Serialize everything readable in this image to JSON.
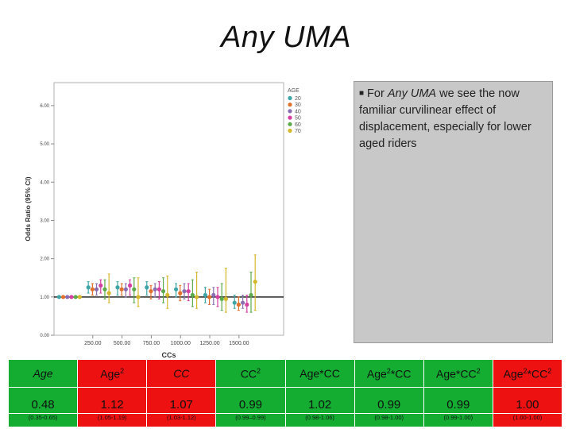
{
  "slide": {
    "title": "Any UMA",
    "note_prefix": "For ",
    "note_emphasis": "Any UMA",
    "note_rest": " we see the now familiar curvilinear effect of displacement, especially for lower aged riders"
  },
  "colors": {
    "red": "#ee1111",
    "green": "#14ad32",
    "note_bg": "#c8c8c8"
  },
  "chart_data": {
    "type": "scatter",
    "title": "",
    "xlabel": "CCs",
    "ylabel": "Odds Ratio (95% CI)",
    "xlim": [
      0,
      1800
    ],
    "ylim": [
      0,
      6.6
    ],
    "xticks": [
      250,
      500,
      750,
      1000,
      1250,
      1500
    ],
    "xtick_labels": [
      "250.00",
      "500.00",
      "750.00",
      "1000.00",
      "1250.00",
      "1500.00"
    ],
    "yticks": [
      0,
      1,
      2,
      3,
      4,
      5,
      6
    ],
    "ytick_labels": [
      "0.00",
      "1.00",
      "2.00",
      "3.00",
      "4.00",
      "5.00",
      "6.00"
    ],
    "reference_line": 1.0,
    "legend_title": "AGE",
    "legend_position": "top-right",
    "series": [
      {
        "name": "20",
        "color": "#3fa4a6",
        "points": [
          {
            "x": 50,
            "y": 1.0,
            "lo": 1.0,
            "hi": 1.0
          },
          {
            "x": 300,
            "y": 1.25,
            "lo": 1.1,
            "hi": 1.4
          },
          {
            "x": 550,
            "y": 1.25,
            "lo": 1.05,
            "hi": 1.4
          },
          {
            "x": 800,
            "y": 1.25,
            "lo": 1.05,
            "hi": 1.4
          },
          {
            "x": 1050,
            "y": 1.2,
            "lo": 1.0,
            "hi": 1.35
          },
          {
            "x": 1300,
            "y": 1.05,
            "lo": 0.85,
            "hi": 1.25
          },
          {
            "x": 1550,
            "y": 0.85,
            "lo": 0.7,
            "hi": 1.05
          }
        ]
      },
      {
        "name": "30",
        "color": "#e0702e",
        "points": [
          {
            "x": 50,
            "y": 1.0,
            "lo": 1.0,
            "hi": 1.0
          },
          {
            "x": 300,
            "y": 1.2,
            "lo": 1.05,
            "hi": 1.35
          },
          {
            "x": 550,
            "y": 1.2,
            "lo": 1.05,
            "hi": 1.35
          },
          {
            "x": 800,
            "y": 1.15,
            "lo": 0.95,
            "hi": 1.3
          },
          {
            "x": 1050,
            "y": 1.1,
            "lo": 0.9,
            "hi": 1.3
          },
          {
            "x": 1300,
            "y": 1.0,
            "lo": 0.8,
            "hi": 1.2
          },
          {
            "x": 1550,
            "y": 0.8,
            "lo": 0.65,
            "hi": 1.0
          }
        ]
      },
      {
        "name": "40",
        "color": "#8a6fb0",
        "points": [
          {
            "x": 50,
            "y": 1.0,
            "lo": 1.0,
            "hi": 1.0
          },
          {
            "x": 300,
            "y": 1.2,
            "lo": 1.05,
            "hi": 1.35
          },
          {
            "x": 550,
            "y": 1.2,
            "lo": 1.0,
            "hi": 1.35
          },
          {
            "x": 800,
            "y": 1.2,
            "lo": 1.0,
            "hi": 1.35
          },
          {
            "x": 1050,
            "y": 1.15,
            "lo": 0.95,
            "hi": 1.35
          },
          {
            "x": 1300,
            "y": 1.05,
            "lo": 0.8,
            "hi": 1.25
          },
          {
            "x": 1550,
            "y": 0.85,
            "lo": 0.7,
            "hi": 1.05
          }
        ]
      },
      {
        "name": "50",
        "color": "#d43fa0",
        "points": [
          {
            "x": 50,
            "y": 1.0,
            "lo": 1.0,
            "hi": 1.0
          },
          {
            "x": 300,
            "y": 1.3,
            "lo": 1.1,
            "hi": 1.45
          },
          {
            "x": 550,
            "y": 1.3,
            "lo": 1.05,
            "hi": 1.45
          },
          {
            "x": 800,
            "y": 1.2,
            "lo": 0.95,
            "hi": 1.4
          },
          {
            "x": 1050,
            "y": 1.15,
            "lo": 0.9,
            "hi": 1.35
          },
          {
            "x": 1300,
            "y": 1.0,
            "lo": 0.75,
            "hi": 1.25
          },
          {
            "x": 1550,
            "y": 0.8,
            "lo": 0.6,
            "hi": 1.05
          }
        ]
      },
      {
        "name": "60",
        "color": "#5caa4a",
        "points": [
          {
            "x": 50,
            "y": 1.0,
            "lo": 1.0,
            "hi": 1.0
          },
          {
            "x": 300,
            "y": 1.2,
            "lo": 0.95,
            "hi": 1.45
          },
          {
            "x": 550,
            "y": 1.2,
            "lo": 0.85,
            "hi": 1.5
          },
          {
            "x": 800,
            "y": 1.15,
            "lo": 0.85,
            "hi": 1.5
          },
          {
            "x": 1050,
            "y": 1.05,
            "lo": 0.75,
            "hi": 1.45
          },
          {
            "x": 1300,
            "y": 0.95,
            "lo": 0.65,
            "hi": 1.35
          },
          {
            "x": 1550,
            "y": 1.05,
            "lo": 0.6,
            "hi": 1.65
          }
        ]
      },
      {
        "name": "70",
        "color": "#d4b72a",
        "points": [
          {
            "x": 50,
            "y": 1.0,
            "lo": 1.0,
            "hi": 1.0
          },
          {
            "x": 300,
            "y": 1.1,
            "lo": 0.85,
            "hi": 1.6
          },
          {
            "x": 550,
            "y": 1.0,
            "lo": 0.75,
            "hi": 1.5
          },
          {
            "x": 800,
            "y": 1.05,
            "lo": 0.7,
            "hi": 1.55
          },
          {
            "x": 1050,
            "y": 1.0,
            "lo": 0.7,
            "hi": 1.65
          },
          {
            "x": 1300,
            "y": 0.95,
            "lo": 0.6,
            "hi": 1.75
          },
          {
            "x": 1550,
            "y": 1.4,
            "lo": 0.65,
            "hi": 2.1
          }
        ]
      }
    ]
  },
  "table": {
    "headers": [
      "Age",
      "Age2",
      "CC",
      "CC2",
      "Age*CC",
      "Age2*CC",
      "Age*CC2",
      "Age2*CC2"
    ],
    "values": [
      "0.48",
      "1.12",
      "1.07",
      "0.99",
      "1.02",
      "0.99",
      "0.99",
      "1.00"
    ],
    "cis": [
      "(0.35-0.65)",
      "(1.05-1.19)",
      "(1.03-1.12)",
      "(0.99–0.99)",
      "(0.98-1.06)",
      "(0.98-1.00)",
      "(0.99-1.00)",
      "(1.00-1.00)"
    ],
    "cell_colors": [
      "green",
      "red",
      "red",
      "green",
      "green",
      "green",
      "green",
      "red"
    ]
  }
}
